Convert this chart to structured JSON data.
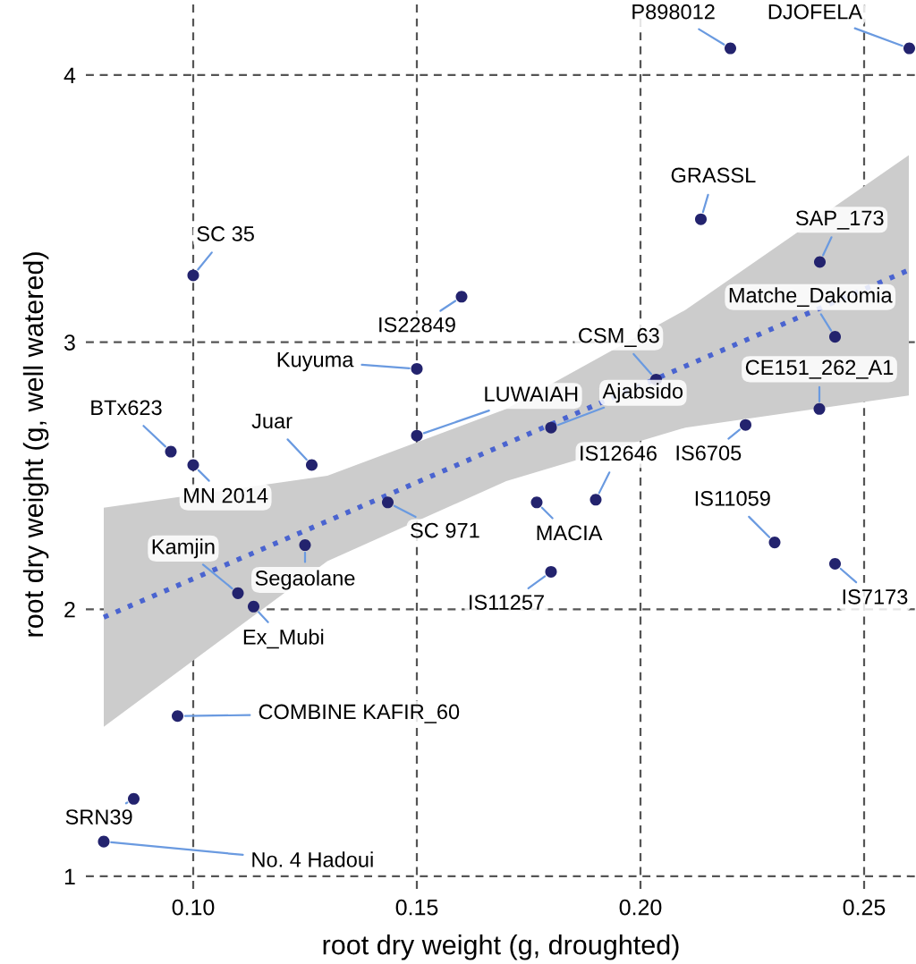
{
  "chart_data": {
    "type": "scatter",
    "xlabel": "root dry weight (g, droughted)",
    "ylabel": "root dry weight (g, well watered)",
    "xlim": [
      0.076,
      0.2616
    ],
    "ylim": [
      0.953,
      4.281
    ],
    "xticks": [
      {
        "value": 0.1,
        "label": "0.10"
      },
      {
        "value": 0.15,
        "label": "0.15"
      },
      {
        "value": 0.2,
        "label": "0.20"
      },
      {
        "value": 0.25,
        "label": "0.25"
      }
    ],
    "yticks": [
      1,
      2,
      3,
      4
    ],
    "grid": true,
    "marker": "circle",
    "series": [
      {
        "color": "#23236e",
        "x": [
          0.2201,
          0.2601,
          0.2135,
          0.2401,
          0.2435,
          0.2035,
          0.24,
          0.18,
          0.2235,
          0.16,
          0.1,
          0.15,
          0.15,
          0.095,
          0.1,
          0.1265,
          0.1435,
          0.125,
          0.11,
          0.1135,
          0.0965,
          0.0867,
          0.08,
          0.1768,
          0.19,
          0.18,
          0.23,
          0.2435
        ],
        "values": [
          4.1,
          4.1,
          3.46,
          3.3,
          3.02,
          2.86,
          2.75,
          2.68,
          2.69,
          3.17,
          3.25,
          2.9,
          2.65,
          2.59,
          2.54,
          2.54,
          2.4,
          2.24,
          2.06,
          2.01,
          1.6,
          1.29,
          1.13,
          2.4,
          2.41,
          2.14,
          2.25,
          2.17
        ]
      },
      {
        "type": "line",
        "color": "#4a64d0",
        "line_style": "dotted",
        "marker": "none",
        "x": [
          0.08,
          0.13,
          0.17,
          0.21,
          0.26
        ],
        "values": [
          1.97,
          2.33,
          2.62,
          2.91,
          3.27
        ],
        "lower": [
          1.56,
          2.18,
          2.48,
          2.68,
          2.8
        ],
        "upper": [
          2.38,
          2.5,
          2.75,
          3.12,
          3.7
        ]
      }
    ],
    "annotations": [
      {
        "text": "P898012",
        "x": 0.2201,
        "y": 4.1
      },
      {
        "text": "DJOFELA",
        "x": 0.2601,
        "y": 4.1
      },
      {
        "text": "GRASSL",
        "x": 0.2135,
        "y": 3.46
      },
      {
        "text": "SAP_173",
        "x": 0.2401,
        "y": 3.3
      },
      {
        "text": "Matche_Dakomia",
        "x": 0.2435,
        "y": 3.02
      },
      {
        "text": "CSM_63",
        "x": 0.2035,
        "y": 2.86
      },
      {
        "text": "CE151_262_A1",
        "x": 0.24,
        "y": 2.75
      },
      {
        "text": "Ajabsido",
        "x": 0.18,
        "y": 2.68
      },
      {
        "text": "IS6705",
        "x": 0.2235,
        "y": 2.69
      },
      {
        "text": "IS22849",
        "x": 0.16,
        "y": 3.17
      },
      {
        "text": "SC 35",
        "x": 0.1,
        "y": 3.25
      },
      {
        "text": "Kuyuma",
        "x": 0.15,
        "y": 2.9
      },
      {
        "text": "LUWAIAH",
        "x": 0.15,
        "y": 2.65
      },
      {
        "text": "BTx623",
        "x": 0.095,
        "y": 2.59
      },
      {
        "text": "MN 2014",
        "x": 0.1,
        "y": 2.54
      },
      {
        "text": "Juar",
        "x": 0.1265,
        "y": 2.54
      },
      {
        "text": "SC 971",
        "x": 0.1435,
        "y": 2.4
      },
      {
        "text": "Segaolane",
        "x": 0.125,
        "y": 2.24
      },
      {
        "text": "Kamjin",
        "x": 0.11,
        "y": 2.06
      },
      {
        "text": "Ex_Mubi",
        "x": 0.1135,
        "y": 2.01
      },
      {
        "text": "COMBINE KAFIR_60",
        "x": 0.0965,
        "y": 1.6
      },
      {
        "text": "SRN39",
        "x": 0.0867,
        "y": 1.29
      },
      {
        "text": "No. 4 Hadoui",
        "x": 0.08,
        "y": 1.13
      },
      {
        "text": "MACIA",
        "x": 0.1768,
        "y": 2.4
      },
      {
        "text": "IS12646",
        "x": 0.19,
        "y": 2.41
      },
      {
        "text": "IS11257",
        "x": 0.18,
        "y": 2.14
      },
      {
        "text": "IS11059",
        "x": 0.23,
        "y": 2.25
      },
      {
        "text": "IS7173",
        "x": 0.2435,
        "y": 2.17
      }
    ]
  }
}
